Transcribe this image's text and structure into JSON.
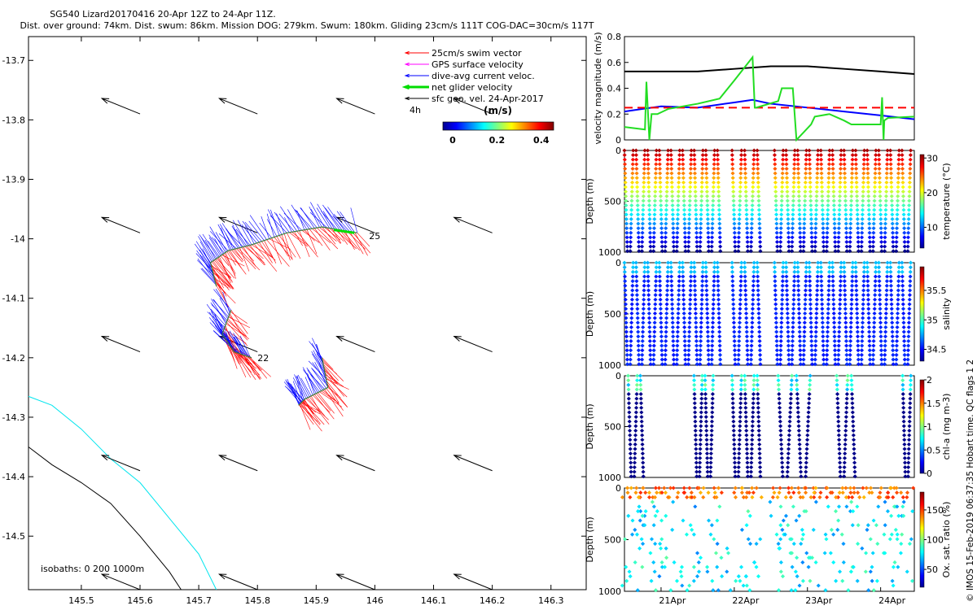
{
  "title": {
    "line1": "SG540 Lizard20170416 20-Apr 12Z to 24-Apr 11Z.",
    "line2": "Dist. over ground: 74km. Dist. swum: 86km. Mission DOG: 279km. Swum: 180km. Gliding 23cm/s 111T COG-DAC=30cm/s 117T"
  },
  "credit": "© IMOS 15-Feb-2019 06:37:35 Hobart time. QC flags 1  2",
  "colors": {
    "swim": "#ff0000",
    "gps": "#ff00ff",
    "dac": "#0000ff",
    "net": "#00dd00",
    "geo": "#000000",
    "iso200": "#00e5ee",
    "iso1000": "#000000",
    "vel_black": "#000000",
    "vel_blue": "#0000ff",
    "vel_red_dash": "#ff0000",
    "vel_green": "#22dd22"
  },
  "chart_data": [
    {
      "type": "map",
      "name": "glider-track-map",
      "xlim": [
        145.41,
        146.36
      ],
      "ylim": [
        -14.59,
        -13.66
      ],
      "xticks": [
        145.5,
        145.6,
        145.7,
        145.8,
        145.9,
        146,
        146.1,
        146.2,
        146.3
      ],
      "xticklabels": [
        "145.5",
        "145.6",
        "145.7",
        "145.8",
        "145.9",
        "146",
        "146.1",
        "146.2",
        "146.3"
      ],
      "yticks": [
        -13.7,
        -13.8,
        -13.9,
        -14,
        -14.1,
        -14.2,
        -14.3,
        -14.4,
        -14.5
      ],
      "yticklabels": [
        "-13.7",
        "-13.8",
        "-13.9",
        "-14",
        "-14.1",
        "-14.2",
        "-14.3",
        "-14.4",
        "-14.5"
      ],
      "legend": [
        {
          "label": "25cm/s swim vector",
          "color_key": "swim"
        },
        {
          "label": "GPS surface velocity",
          "color_key": "gps"
        },
        {
          "label": "dive-avg current veloc.",
          "color_key": "dac"
        },
        {
          "label": "net glider velocity",
          "color_key": "net"
        },
        {
          "label": "sfc geo. vel. 24-Apr-2017",
          "color_key": "geo"
        }
      ],
      "legend_note": "4h",
      "colorbar": {
        "label": "(m/s)",
        "ticks": [
          "0",
          "0.2",
          "0.4"
        ],
        "range": [
          0,
          0.5
        ]
      },
      "isobath_label": "isobaths: 0   200  1000m",
      "geo_vector_lon": [
        145.55,
        145.75,
        145.95,
        146.15
      ],
      "geo_vector_lat": [
        -13.77,
        -13.97,
        -14.17,
        -14.37,
        -14.57
      ],
      "geo_vector_u": -0.065,
      "geo_vector_v": 0.026,
      "iso200": [
        [
          145.41,
          -14.265
        ],
        [
          145.45,
          -14.28
        ],
        [
          145.5,
          -14.32
        ],
        [
          145.55,
          -14.37
        ],
        [
          145.6,
          -14.41
        ],
        [
          145.65,
          -14.47
        ],
        [
          145.7,
          -14.53
        ],
        [
          145.73,
          -14.59
        ]
      ],
      "iso1000": [
        [
          145.41,
          -14.35
        ],
        [
          145.45,
          -14.38
        ],
        [
          145.5,
          -14.41
        ],
        [
          145.55,
          -14.445
        ],
        [
          145.6,
          -14.5
        ],
        [
          145.65,
          -14.56
        ],
        [
          145.67,
          -14.59
        ]
      ],
      "track_segments": [
        {
          "name": "segment-1",
          "points": [
            [
              145.97,
              -13.99
            ],
            [
              145.91,
              -13.98
            ],
            [
              145.85,
              -13.99
            ],
            [
              145.79,
              -14.01
            ],
            [
              145.75,
              -14.02
            ],
            [
              145.72,
              -14.04
            ],
            [
              145.73,
              -14.08
            ]
          ]
        },
        {
          "name": "segment-2",
          "points": [
            [
              145.755,
              -14.12
            ],
            [
              145.74,
              -14.16
            ],
            [
              145.76,
              -14.19
            ],
            [
              145.79,
              -14.2
            ]
          ]
        },
        {
          "name": "segment-3",
          "points": [
            [
              145.91,
              -14.2
            ],
            [
              145.92,
              -14.25
            ],
            [
              145.88,
              -14.27
            ],
            [
              145.87,
              -14.28
            ]
          ]
        }
      ],
      "track_labels": [
        {
          "text": "25",
          "lon": 145.99,
          "lat": -13.995
        },
        {
          "text": "22",
          "lon": 145.8,
          "lat": -14.2
        }
      ]
    },
    {
      "type": "line",
      "name": "velocity-magnitude",
      "ylabel": "velocity magnitude (m/s)",
      "ylim": [
        0,
        0.8
      ],
      "yticks": [
        "0",
        "0.2",
        "0.4",
        "0.6",
        "0.8"
      ],
      "xlim": [
        20.5,
        24.46
      ],
      "series": [
        {
          "name": "black",
          "color_key": "vel_black",
          "x": [
            20.5,
            21.0,
            21.5,
            22.0,
            22.5,
            23.0,
            23.5,
            24.0,
            24.46
          ],
          "y": [
            0.53,
            0.53,
            0.53,
            0.55,
            0.57,
            0.57,
            0.55,
            0.53,
            0.51
          ]
        },
        {
          "name": "blue",
          "color_key": "vel_blue",
          "x": [
            20.5,
            20.75,
            21.0,
            21.5,
            22.0,
            22.25,
            22.5,
            23.0,
            23.5,
            24.0,
            24.46
          ],
          "y": [
            0.22,
            0.24,
            0.26,
            0.25,
            0.29,
            0.31,
            0.28,
            0.25,
            0.22,
            0.19,
            0.16
          ]
        },
        {
          "name": "red-dashed",
          "color_key": "vel_red_dash",
          "dashed": true,
          "x": [
            20.5,
            22.25,
            22.6,
            24.46
          ],
          "y": [
            0.25,
            0.25,
            0.25,
            0.25
          ]
        },
        {
          "name": "green",
          "color_key": "vel_green",
          "x": [
            20.5,
            20.78,
            20.8,
            20.84,
            20.87,
            20.95,
            21.1,
            21.5,
            21.8,
            22.0,
            22.25,
            22.28,
            22.3,
            22.6,
            22.65,
            22.8,
            22.85,
            23.05,
            23.1,
            23.3,
            23.5,
            23.6,
            23.9,
            24.0,
            24.02,
            24.04,
            24.05,
            24.1,
            24.46
          ],
          "y": [
            0.1,
            0.08,
            0.45,
            0.0,
            0.2,
            0.2,
            0.24,
            0.28,
            0.32,
            0.46,
            0.64,
            0.25,
            0.25,
            0.3,
            0.4,
            0.4,
            0.0,
            0.12,
            0.18,
            0.2,
            0.15,
            0.12,
            0.12,
            0.12,
            0.33,
            0.0,
            0.15,
            0.17,
            0.18
          ]
        }
      ]
    },
    {
      "type": "scatter",
      "name": "temperature-profile",
      "ylabel": "Depth (m)",
      "yticks": [
        "0",
        "500",
        "1000"
      ],
      "clabel": "temperature (°C)",
      "cticks": [
        "30",
        "20",
        "10"
      ],
      "crange": [
        4,
        31
      ],
      "pattern": "temp",
      "groups": [
        {
          "start": 20.5,
          "end": 21.85,
          "n": 17
        },
        {
          "start": 21.97,
          "end": 22.4,
          "n": 5
        },
        {
          "start": 22.55,
          "end": 24.45,
          "n": 24
        }
      ]
    },
    {
      "type": "scatter",
      "name": "salinity-profile",
      "ylabel": "Depth (m)",
      "yticks": [
        "0",
        "500",
        "1000"
      ],
      "clabel": "salinity",
      "cticks": [
        "35.5",
        "35",
        "34.5"
      ],
      "crange": [
        34.3,
        35.9
      ],
      "pattern": "salt",
      "groups": [
        {
          "start": 20.5,
          "end": 21.85,
          "n": 17
        },
        {
          "start": 21.97,
          "end": 22.4,
          "n": 5
        },
        {
          "start": 22.55,
          "end": 24.45,
          "n": 24
        }
      ]
    },
    {
      "type": "scatter",
      "name": "chlorophyll-profile",
      "ylabel": "Depth (m)",
      "yticks": [
        "0",
        "500",
        "1000"
      ],
      "clabel": "chl-a (mg m-3)",
      "cticks": [
        "2",
        "1.5",
        "1",
        "0.5",
        "0"
      ],
      "crange": [
        0,
        2
      ],
      "pattern": "chl",
      "groups": [
        {
          "start": 20.55,
          "end": 20.8,
          "n": 3
        },
        {
          "start": 21.45,
          "end": 21.75,
          "n": 4
        },
        {
          "start": 21.97,
          "end": 22.4,
          "n": 5
        },
        {
          "start": 22.6,
          "end": 23.1,
          "n": 4
        },
        {
          "start": 23.4,
          "end": 23.7,
          "n": 3
        },
        {
          "start": 24.3,
          "end": 24.45,
          "n": 2
        }
      ]
    },
    {
      "type": "scatter",
      "name": "oxygen-profile",
      "ylabel": "Depth (m)",
      "yticks": [
        "0",
        "500",
        "1000"
      ],
      "clabel": "Ox. sat. ratio (%)",
      "cticks": [
        "150",
        "100",
        "50"
      ],
      "crange": [
        20,
        180
      ],
      "pattern": "ox",
      "xticks": [
        {
          "label": "21Apr",
          "x": 21.0
        },
        {
          "label": "22Apr",
          "x": 22.0
        },
        {
          "label": "23Apr",
          "x": 23.0
        },
        {
          "label": "24Apr",
          "x": 24.0
        }
      ],
      "groups": [
        {
          "start": 20.5,
          "end": 21.85,
          "n": 17
        },
        {
          "start": 21.97,
          "end": 22.4,
          "n": 5
        },
        {
          "start": 22.55,
          "end": 24.45,
          "n": 24
        }
      ]
    }
  ]
}
